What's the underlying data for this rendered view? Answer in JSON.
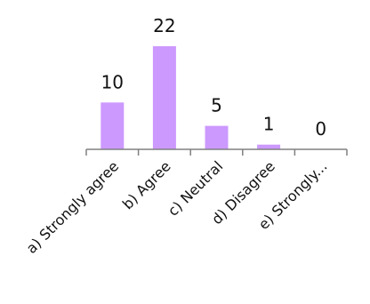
{
  "chart_data": {
    "type": "bar",
    "categories": [
      "a) Strongly agree",
      "b) Agree",
      "c) Neutral",
      "d) Disagree",
      "e) Strongly..."
    ],
    "values": [
      10,
      22,
      5,
      1,
      0
    ],
    "title": "",
    "xlabel": "",
    "ylabel": "",
    "ylim": [
      0,
      22
    ],
    "grid": false,
    "legend": "none",
    "bar_color": "#cc99ff",
    "axis_color": "#808080",
    "text_color": "#111111"
  }
}
